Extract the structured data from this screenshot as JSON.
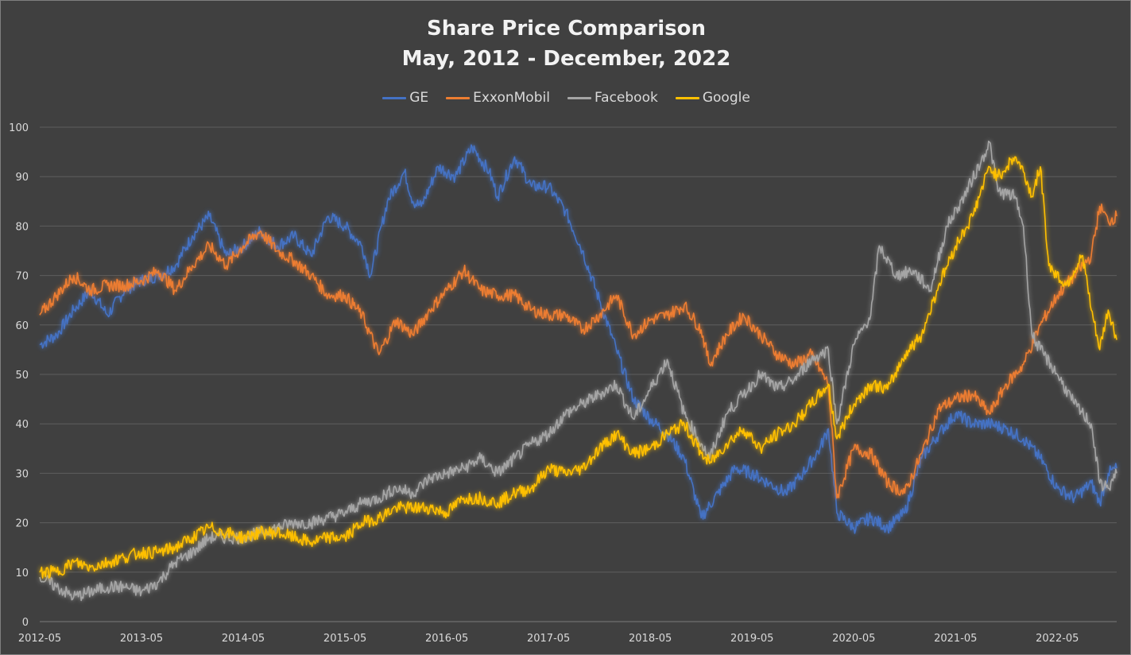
{
  "chart_data": {
    "type": "line",
    "title": "Share Price Comparison",
    "subtitle": "May, 2012 - December, 2022",
    "xlabel": "",
    "ylabel": "",
    "ylim": [
      0,
      100
    ],
    "yticks": [
      0,
      10,
      20,
      30,
      40,
      50,
      60,
      70,
      80,
      90,
      100
    ],
    "xlim": [
      "2012-05",
      "2022-12"
    ],
    "xticks": [
      "2012-05",
      "2013-05",
      "2014-05",
      "2015-05",
      "2016-05",
      "2017-05",
      "2018-05",
      "2019-05",
      "2020-05",
      "2021-05",
      "2022-05"
    ],
    "grid": "horizontal",
    "legend_position": "top",
    "series": [
      {
        "name": "GE",
        "color": "#4472c4",
        "points": [
          [
            "2012-05",
            56
          ],
          [
            "2012-07",
            58
          ],
          [
            "2012-09",
            63
          ],
          [
            "2012-11",
            67
          ],
          [
            "2013-01",
            62
          ],
          [
            "2013-03",
            67
          ],
          [
            "2013-05",
            69
          ],
          [
            "2013-07",
            70
          ],
          [
            "2013-09",
            72
          ],
          [
            "2013-11",
            78
          ],
          [
            "2014-01",
            82
          ],
          [
            "2014-03",
            74
          ],
          [
            "2014-05",
            76
          ],
          [
            "2014-07",
            79
          ],
          [
            "2014-09",
            76
          ],
          [
            "2014-11",
            78
          ],
          [
            "2015-01",
            74
          ],
          [
            "2015-03",
            82
          ],
          [
            "2015-05",
            80
          ],
          [
            "2015-07",
            76
          ],
          [
            "2015-08",
            70
          ],
          [
            "2015-10",
            85
          ],
          [
            "2015-12",
            91
          ],
          [
            "2016-01",
            85
          ],
          [
            "2016-02",
            84
          ],
          [
            "2016-04",
            92
          ],
          [
            "2016-06",
            90
          ],
          [
            "2016-08",
            96
          ],
          [
            "2016-10",
            91
          ],
          [
            "2016-11",
            86
          ],
          [
            "2017-01",
            94
          ],
          [
            "2017-03",
            88
          ],
          [
            "2017-05",
            88
          ],
          [
            "2017-07",
            83
          ],
          [
            "2017-09",
            75
          ],
          [
            "2017-11",
            65
          ],
          [
            "2018-01",
            55
          ],
          [
            "2018-03",
            45
          ],
          [
            "2018-05",
            41
          ],
          [
            "2018-07",
            38
          ],
          [
            "2018-09",
            33
          ],
          [
            "2018-11",
            21
          ],
          [
            "2019-01",
            26
          ],
          [
            "2019-03",
            31
          ],
          [
            "2019-05",
            30
          ],
          [
            "2019-07",
            28
          ],
          [
            "2019-09",
            26
          ],
          [
            "2019-11",
            30
          ],
          [
            "2020-01",
            35
          ],
          [
            "2020-02",
            39
          ],
          [
            "2020-03",
            22
          ],
          [
            "2020-05",
            19
          ],
          [
            "2020-07",
            21
          ],
          [
            "2020-09",
            19
          ],
          [
            "2020-11",
            22
          ],
          [
            "2021-01",
            33
          ],
          [
            "2021-03",
            38
          ],
          [
            "2021-05",
            42
          ],
          [
            "2021-07",
            40
          ],
          [
            "2021-09",
            40
          ],
          [
            "2021-11",
            39
          ],
          [
            "2022-01",
            37
          ],
          [
            "2022-03",
            33
          ],
          [
            "2022-05",
            27
          ],
          [
            "2022-07",
            25
          ],
          [
            "2022-09",
            28
          ],
          [
            "2022-10",
            24
          ],
          [
            "2022-11",
            30
          ],
          [
            "2022-12",
            31
          ]
        ]
      },
      {
        "name": "ExxonMobil",
        "color": "#ed7d31",
        "points": [
          [
            "2012-05",
            62
          ],
          [
            "2012-07",
            66
          ],
          [
            "2012-09",
            70
          ],
          [
            "2012-11",
            67
          ],
          [
            "2013-01",
            68
          ],
          [
            "2013-03",
            68
          ],
          [
            "2013-05",
            69
          ],
          [
            "2013-07",
            71
          ],
          [
            "2013-09",
            67
          ],
          [
            "2013-11",
            72
          ],
          [
            "2014-01",
            76
          ],
          [
            "2014-03",
            72
          ],
          [
            "2014-05",
            76
          ],
          [
            "2014-07",
            79
          ],
          [
            "2014-09",
            75
          ],
          [
            "2014-11",
            73
          ],
          [
            "2015-01",
            70
          ],
          [
            "2015-03",
            66
          ],
          [
            "2015-05",
            66
          ],
          [
            "2015-07",
            62
          ],
          [
            "2015-09",
            54
          ],
          [
            "2015-11",
            61
          ],
          [
            "2016-01",
            58
          ],
          [
            "2016-03",
            63
          ],
          [
            "2016-05",
            67
          ],
          [
            "2016-07",
            71
          ],
          [
            "2016-09",
            67
          ],
          [
            "2016-11",
            66
          ],
          [
            "2017-01",
            66
          ],
          [
            "2017-03",
            63
          ],
          [
            "2017-05",
            62
          ],
          [
            "2017-07",
            62
          ],
          [
            "2017-09",
            59
          ],
          [
            "2017-11",
            62
          ],
          [
            "2018-01",
            66
          ],
          [
            "2018-03",
            58
          ],
          [
            "2018-05",
            61
          ],
          [
            "2018-07",
            62
          ],
          [
            "2018-09",
            64
          ],
          [
            "2018-11",
            59
          ],
          [
            "2018-12",
            52
          ],
          [
            "2019-02",
            58
          ],
          [
            "2019-04",
            62
          ],
          [
            "2019-06",
            58
          ],
          [
            "2019-08",
            54
          ],
          [
            "2019-10",
            52
          ],
          [
            "2019-12",
            54
          ],
          [
            "2020-02",
            48
          ],
          [
            "2020-03",
            25
          ],
          [
            "2020-05",
            35
          ],
          [
            "2020-07",
            34
          ],
          [
            "2020-09",
            28
          ],
          [
            "2020-11",
            26
          ],
          [
            "2021-01",
            34
          ],
          [
            "2021-03",
            43
          ],
          [
            "2021-05",
            45
          ],
          [
            "2021-07",
            46
          ],
          [
            "2021-09",
            42
          ],
          [
            "2021-11",
            48
          ],
          [
            "2022-01",
            52
          ],
          [
            "2022-03",
            60
          ],
          [
            "2022-05",
            66
          ],
          [
            "2022-07",
            70
          ],
          [
            "2022-09",
            74
          ],
          [
            "2022-10",
            84
          ],
          [
            "2022-11",
            81
          ],
          [
            "2022-12",
            82
          ]
        ]
      },
      {
        "name": "Facebook",
        "color": "#a5a5a5",
        "points": [
          [
            "2012-05",
            9
          ],
          [
            "2012-07",
            7
          ],
          [
            "2012-09",
            5
          ],
          [
            "2012-11",
            6
          ],
          [
            "2013-01",
            7
          ],
          [
            "2013-03",
            7
          ],
          [
            "2013-05",
            6
          ],
          [
            "2013-07",
            8
          ],
          [
            "2013-09",
            12
          ],
          [
            "2013-11",
            14
          ],
          [
            "2014-01",
            17
          ],
          [
            "2014-03",
            17
          ],
          [
            "2014-05",
            17
          ],
          [
            "2014-07",
            18
          ],
          [
            "2014-09",
            19
          ],
          [
            "2014-11",
            20
          ],
          [
            "2015-01",
            20
          ],
          [
            "2015-03",
            21
          ],
          [
            "2015-05",
            22
          ],
          [
            "2015-07",
            24
          ],
          [
            "2015-09",
            25
          ],
          [
            "2015-11",
            27
          ],
          [
            "2016-01",
            26
          ],
          [
            "2016-03",
            29
          ],
          [
            "2016-05",
            30
          ],
          [
            "2016-07",
            31
          ],
          [
            "2016-09",
            33
          ],
          [
            "2016-11",
            30
          ],
          [
            "2017-01",
            33
          ],
          [
            "2017-03",
            36
          ],
          [
            "2017-05",
            38
          ],
          [
            "2017-07",
            42
          ],
          [
            "2017-09",
            44
          ],
          [
            "2017-11",
            46
          ],
          [
            "2018-01",
            48
          ],
          [
            "2018-03",
            41
          ],
          [
            "2018-05",
            47
          ],
          [
            "2018-07",
            53
          ],
          [
            "2018-09",
            42
          ],
          [
            "2018-11",
            36
          ],
          [
            "2018-12",
            33
          ],
          [
            "2019-02",
            42
          ],
          [
            "2019-04",
            46
          ],
          [
            "2019-06",
            50
          ],
          [
            "2019-08",
            47
          ],
          [
            "2019-10",
            49
          ],
          [
            "2019-12",
            53
          ],
          [
            "2020-02",
            55
          ],
          [
            "2020-03",
            40
          ],
          [
            "2020-05",
            56
          ],
          [
            "2020-07",
            62
          ],
          [
            "2020-08",
            76
          ],
          [
            "2020-10",
            70
          ],
          [
            "2020-12",
            71
          ],
          [
            "2021-02",
            67
          ],
          [
            "2021-04",
            80
          ],
          [
            "2021-06",
            86
          ],
          [
            "2021-08",
            93
          ],
          [
            "2021-09",
            97
          ],
          [
            "2021-10",
            87
          ],
          [
            "2021-12",
            86
          ],
          [
            "2022-01",
            80
          ],
          [
            "2022-02",
            58
          ],
          [
            "2022-03",
            55
          ],
          [
            "2022-05",
            50
          ],
          [
            "2022-07",
            44
          ],
          [
            "2022-09",
            40
          ],
          [
            "2022-10",
            28
          ],
          [
            "2022-11",
            27
          ],
          [
            "2022-12",
            30
          ]
        ]
      },
      {
        "name": "Google",
        "color": "#ffc000",
        "points": [
          [
            "2012-05",
            10
          ],
          [
            "2012-07",
            10
          ],
          [
            "2012-09",
            12
          ],
          [
            "2012-11",
            11
          ],
          [
            "2013-01",
            12
          ],
          [
            "2013-03",
            13
          ],
          [
            "2013-05",
            14
          ],
          [
            "2013-07",
            14
          ],
          [
            "2013-09",
            15
          ],
          [
            "2013-11",
            17
          ],
          [
            "2014-01",
            19
          ],
          [
            "2014-03",
            18
          ],
          [
            "2014-05",
            17
          ],
          [
            "2014-07",
            18
          ],
          [
            "2014-09",
            18
          ],
          [
            "2014-11",
            17
          ],
          [
            "2015-01",
            16
          ],
          [
            "2015-03",
            17
          ],
          [
            "2015-05",
            17
          ],
          [
            "2015-07",
            20
          ],
          [
            "2015-09",
            21
          ],
          [
            "2015-11",
            23
          ],
          [
            "2016-01",
            23
          ],
          [
            "2016-03",
            23
          ],
          [
            "2016-05",
            22
          ],
          [
            "2016-07",
            25
          ],
          [
            "2016-09",
            25
          ],
          [
            "2016-11",
            24
          ],
          [
            "2017-01",
            26
          ],
          [
            "2017-03",
            27
          ],
          [
            "2017-05",
            31
          ],
          [
            "2017-07",
            30
          ],
          [
            "2017-09",
            31
          ],
          [
            "2017-11",
            35
          ],
          [
            "2018-01",
            38
          ],
          [
            "2018-03",
            34
          ],
          [
            "2018-05",
            35
          ],
          [
            "2018-07",
            38
          ],
          [
            "2018-09",
            40
          ],
          [
            "2018-11",
            34
          ],
          [
            "2018-12",
            32
          ],
          [
            "2019-02",
            36
          ],
          [
            "2019-04",
            39
          ],
          [
            "2019-06",
            35
          ],
          [
            "2019-08",
            38
          ],
          [
            "2019-10",
            40
          ],
          [
            "2019-12",
            44
          ],
          [
            "2020-02",
            48
          ],
          [
            "2020-03",
            37
          ],
          [
            "2020-05",
            44
          ],
          [
            "2020-07",
            48
          ],
          [
            "2020-09",
            47
          ],
          [
            "2020-11",
            54
          ],
          [
            "2021-01",
            58
          ],
          [
            "2021-03",
            68
          ],
          [
            "2021-05",
            76
          ],
          [
            "2021-07",
            82
          ],
          [
            "2021-09",
            92
          ],
          [
            "2021-10",
            90
          ],
          [
            "2021-12",
            94
          ],
          [
            "2022-01",
            91
          ],
          [
            "2022-02",
            86
          ],
          [
            "2022-03",
            92
          ],
          [
            "2022-04",
            72
          ],
          [
            "2022-06",
            68
          ],
          [
            "2022-08",
            74
          ],
          [
            "2022-09",
            63
          ],
          [
            "2022-10",
            55
          ],
          [
            "2022-11",
            63
          ],
          [
            "2022-12",
            57
          ]
        ]
      }
    ]
  }
}
